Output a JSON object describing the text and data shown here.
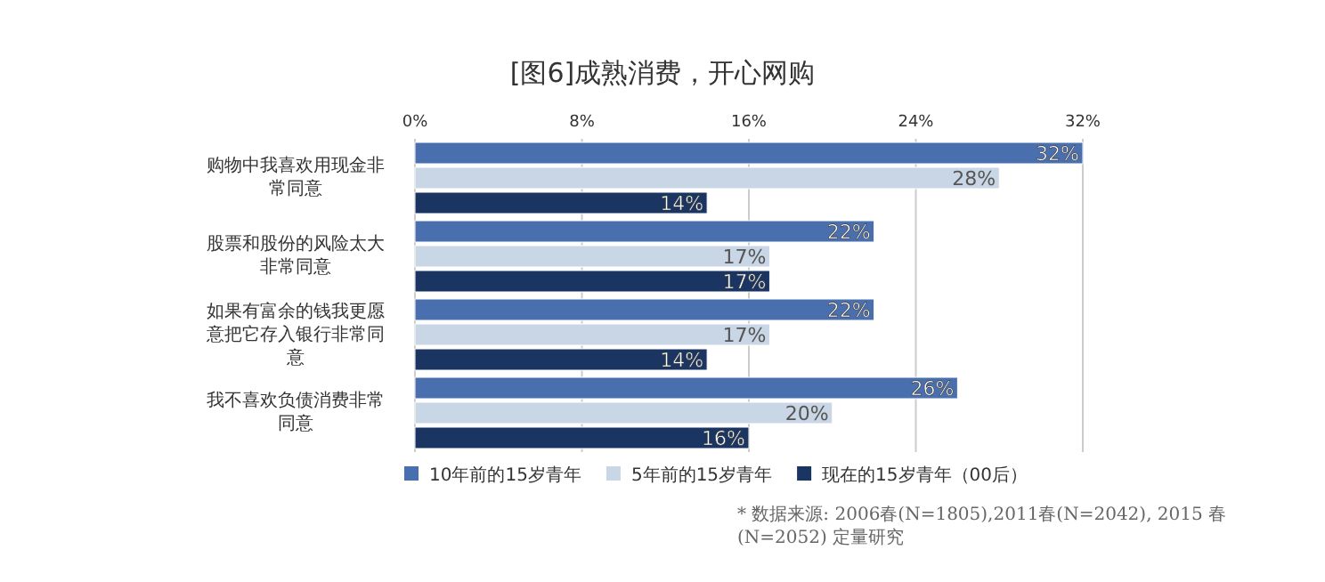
{
  "chart_data": {
    "type": "bar",
    "orientation": "horizontal",
    "title": "[图6]成熟消费，开心网购",
    "categories": [
      "购物中我喜欢用现金非常同意",
      "股票和股份的风险太大非常同意",
      "如果有富余的钱我更愿意把它存入银行非常同意",
      "我不喜欢负债消费非常同意"
    ],
    "series": [
      {
        "name": "10年前的15岁青年",
        "color": "#4a6fae",
        "values": [
          32,
          22,
          22,
          26
        ],
        "value_labels": [
          "32%",
          "22%",
          "22%",
          "26%"
        ]
      },
      {
        "name": "5年前的15岁青年",
        "color": "#c9d6e6",
        "values": [
          28,
          17,
          17,
          20
        ],
        "value_labels": [
          "28%",
          "17%",
          "17%",
          "20%"
        ]
      },
      {
        "name": "现在的15岁青年（00后）",
        "color": "#1b3563",
        "values": [
          14,
          17,
          14,
          16
        ],
        "value_labels": [
          "14%",
          "17%",
          "14%",
          "16%"
        ]
      }
    ],
    "xlim": [
      0,
      32
    ],
    "xticks": [
      {
        "value": 0,
        "label": "0%"
      },
      {
        "value": 8,
        "label": "8%"
      },
      {
        "value": 16,
        "label": "16%"
      },
      {
        "value": 24,
        "label": "24%"
      },
      {
        "value": 32,
        "label": "32%"
      }
    ],
    "grid": "x",
    "legend": "bottom",
    "annotations": [
      "* 数据来源: 2006春(N=1805),2011春(N=2042), 2015 春(N=2052) 定量研究"
    ]
  }
}
